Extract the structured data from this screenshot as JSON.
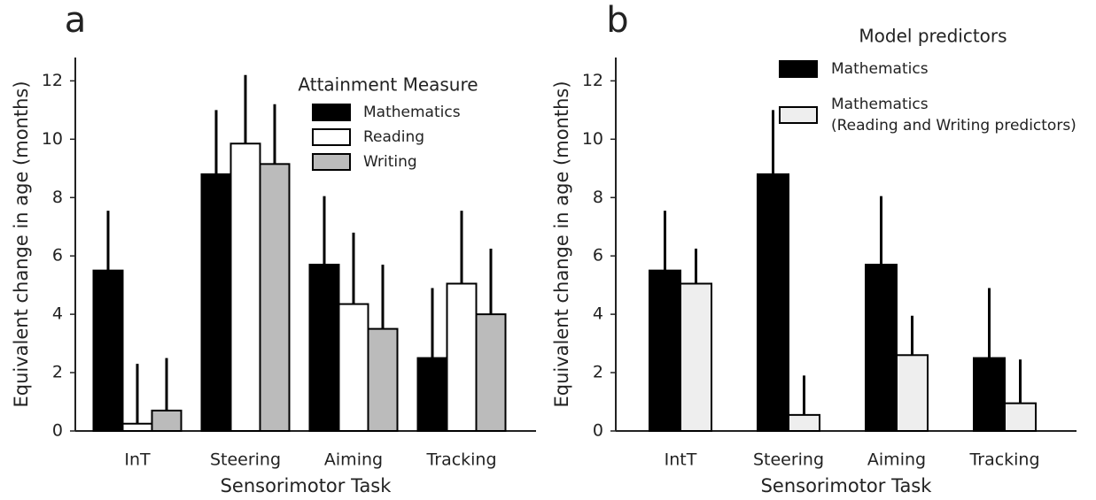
{
  "chart_data": [
    {
      "type": "bar",
      "panel_label": "a",
      "x_label": "Sensorimotor Task",
      "y_label": "Equivalent change in age (months)",
      "categories": [
        "InT",
        "Steering",
        "Aiming",
        "Tracking"
      ],
      "ylim": [
        0,
        12.8
      ],
      "yticks": [
        0,
        2,
        4,
        6,
        8,
        10,
        12
      ],
      "legend_title": "Attainment Measure",
      "legend": "upper right",
      "grid": false,
      "series": [
        {
          "name": "Mathematics",
          "color": "#000000",
          "values": [
            5.5,
            8.8,
            5.7,
            2.5
          ],
          "errors": [
            2.05,
            2.2,
            2.35,
            2.4
          ]
        },
        {
          "name": "Reading",
          "color": "#ffffff",
          "values": [
            0.25,
            9.85,
            4.35,
            5.05
          ],
          "errors": [
            2.05,
            2.35,
            2.45,
            2.5
          ]
        },
        {
          "name": "Writing",
          "color": "#bbbbbb",
          "values": [
            0.7,
            9.15,
            3.5,
            4.0
          ],
          "errors": [
            1.8,
            2.05,
            2.2,
            2.25
          ]
        }
      ]
    },
    {
      "type": "bar",
      "panel_label": "b",
      "x_label": "Sensorimotor Task",
      "y_label": "Equivalent change in age (months)",
      "categories": [
        "IntT",
        "Steering",
        "Aiming",
        "Tracking"
      ],
      "ylim": [
        0,
        12.8
      ],
      "yticks": [
        0,
        2,
        4,
        6,
        8,
        10,
        12
      ],
      "legend_title": "Model predictors",
      "legend": "upper right",
      "grid": false,
      "series": [
        {
          "name": "Mathematics",
          "color": "#000000",
          "values": [
            5.5,
            8.8,
            5.7,
            2.5
          ],
          "errors": [
            2.05,
            2.2,
            2.35,
            2.4
          ]
        },
        {
          "name": "Mathematics\n(Reading and Writing predictors)",
          "color": "#eeeeee",
          "values": [
            5.05,
            0.55,
            2.6,
            0.95
          ],
          "errors": [
            1.2,
            1.35,
            1.35,
            1.5
          ]
        }
      ]
    }
  ]
}
